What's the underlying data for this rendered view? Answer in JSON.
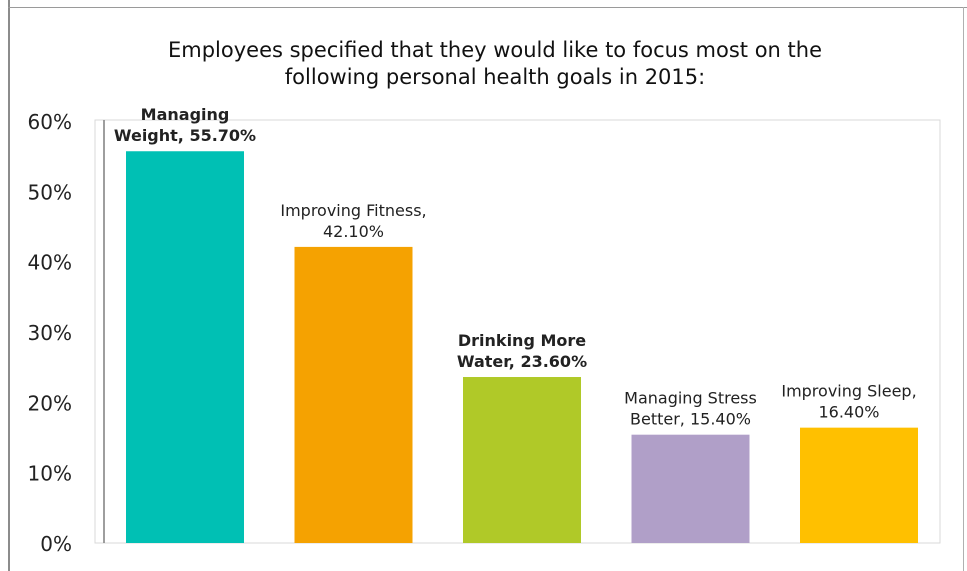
{
  "chart_data": {
    "type": "bar",
    "title_lines": [
      "Employees specified that they would like to focus most on the",
      "following personal health goals in 2015:"
    ],
    "categories": [
      "Managing Weight",
      "Improving Fitness",
      "Drinking More Water",
      "Managing Stress Better",
      "Improving Sleep"
    ],
    "values": [
      55.7,
      42.1,
      23.6,
      15.4,
      16.4
    ],
    "data_labels": [
      [
        "Managing",
        "Weight, 55.70%"
      ],
      [
        "Improving Fitness,",
        "42.10%"
      ],
      [
        "Drinking More",
        "Water, 23.60%"
      ],
      [
        "Managing Stress",
        "Better, 15.40%"
      ],
      [
        "Improving Sleep,",
        "16.40%"
      ]
    ],
    "label_bold": [
      true,
      false,
      true,
      false,
      false
    ],
    "colors": [
      "#00c0b4",
      "#f5a201",
      "#b0c928",
      "#b09fc8",
      "#ffc000"
    ],
    "ylim": [
      0,
      60
    ],
    "yticks": [
      0,
      10,
      20,
      30,
      40,
      50,
      60
    ],
    "ytick_labels": [
      "0%",
      "10%",
      "20%",
      "30%",
      "40%",
      "50%",
      "60%"
    ],
    "grid": false,
    "legend": "none"
  }
}
